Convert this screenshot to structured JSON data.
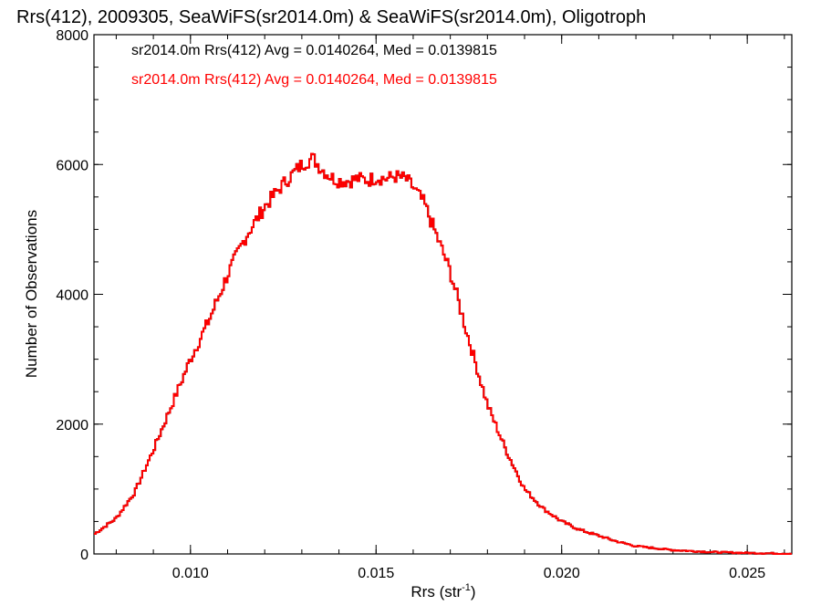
{
  "chart_data": {
    "type": "line",
    "title": "Rrs(412), 2009305, SeaWiFS(sr2014.0m) & SeaWiFS(sr2014.0m), Oligotroph",
    "xlabel": "Rrs (str",
    "xlabel_superscript": "-1",
    "xlabel_suffix": ")",
    "ylabel": "Number of Observations",
    "xlim": [
      0.0074,
      0.0262
    ],
    "ylim": [
      0,
      8000
    ],
    "xticks": [
      0.01,
      0.015,
      0.02,
      0.025
    ],
    "xtick_labels": [
      "0.010",
      "0.015",
      "0.020",
      "0.025"
    ],
    "yticks": [
      0,
      2000,
      4000,
      6000,
      8000
    ],
    "ytick_labels": [
      "0",
      "2000",
      "4000",
      "6000",
      "8000"
    ],
    "x_minor_step": 0.001,
    "y_minor_step": 500,
    "grid": false,
    "legend_position": "top-left",
    "series": [
      {
        "name": "sr2014.0m Rrs(412) Avg = 0.0140264, Med = 0.0139815",
        "color": "#000000",
        "style": "step"
      },
      {
        "name": "sr2014.0m Rrs(412) Avg = 0.0140264, Med = 0.0139815",
        "color": "#ff0000",
        "style": "step"
      }
    ],
    "x": [
      0.0074,
      0.008,
      0.0085,
      0.009,
      0.0095,
      0.01,
      0.0105,
      0.011,
      0.0115,
      0.012,
      0.0125,
      0.013,
      0.0133,
      0.0135,
      0.0138,
      0.014,
      0.0143,
      0.0145,
      0.0148,
      0.015,
      0.0153,
      0.0155,
      0.0158,
      0.016,
      0.0163,
      0.0165,
      0.017,
      0.0175,
      0.018,
      0.0185,
      0.019,
      0.0195,
      0.02,
      0.0205,
      0.021,
      0.0215,
      0.022,
      0.023,
      0.024,
      0.025,
      0.0262
    ],
    "y": [
      300,
      550,
      950,
      1600,
      2300,
      3000,
      3600,
      4300,
      4900,
      5350,
      5700,
      6000,
      6100,
      5950,
      5800,
      5750,
      5750,
      5780,
      5760,
      5800,
      5780,
      5820,
      5780,
      5650,
      5400,
      5100,
      4350,
      3300,
      2300,
      1600,
      1000,
      700,
      500,
      370,
      280,
      190,
      120,
      60,
      30,
      15,
      5
    ]
  }
}
